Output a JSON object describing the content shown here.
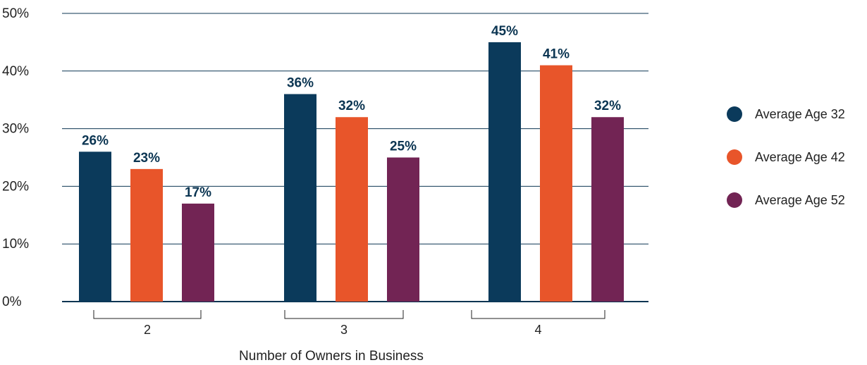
{
  "chart_data": {
    "type": "bar",
    "categories": [
      "2",
      "3",
      "4"
    ],
    "series": [
      {
        "name": "Average Age 32",
        "values": [
          26,
          36,
          45
        ],
        "labels": [
          "26%",
          "36%",
          "45%"
        ],
        "color": "#0b3a5b"
      },
      {
        "name": "Average Age 42",
        "values": [
          23,
          32,
          41
        ],
        "labels": [
          "23%",
          "32%",
          "41%"
        ],
        "color": "#e8552a"
      },
      {
        "name": "Average Age 52",
        "values": [
          17,
          25,
          32
        ],
        "labels": [
          "17%",
          "25%",
          "32%"
        ],
        "color": "#722454"
      }
    ],
    "title": "",
    "xlabel": "Number of Owners in Business",
    "ylabel": "",
    "ylim": [
      0,
      50
    ],
    "yticks": [
      0,
      10,
      20,
      30,
      40,
      50
    ],
    "ytick_labels": [
      "0%",
      "10%",
      "20%",
      "30%",
      "40%",
      "50%"
    ],
    "grid": true,
    "legend_position": "right",
    "colors": {
      "gridline": "#0b3552",
      "text": "#222222",
      "data_label": "#0b3552"
    }
  }
}
